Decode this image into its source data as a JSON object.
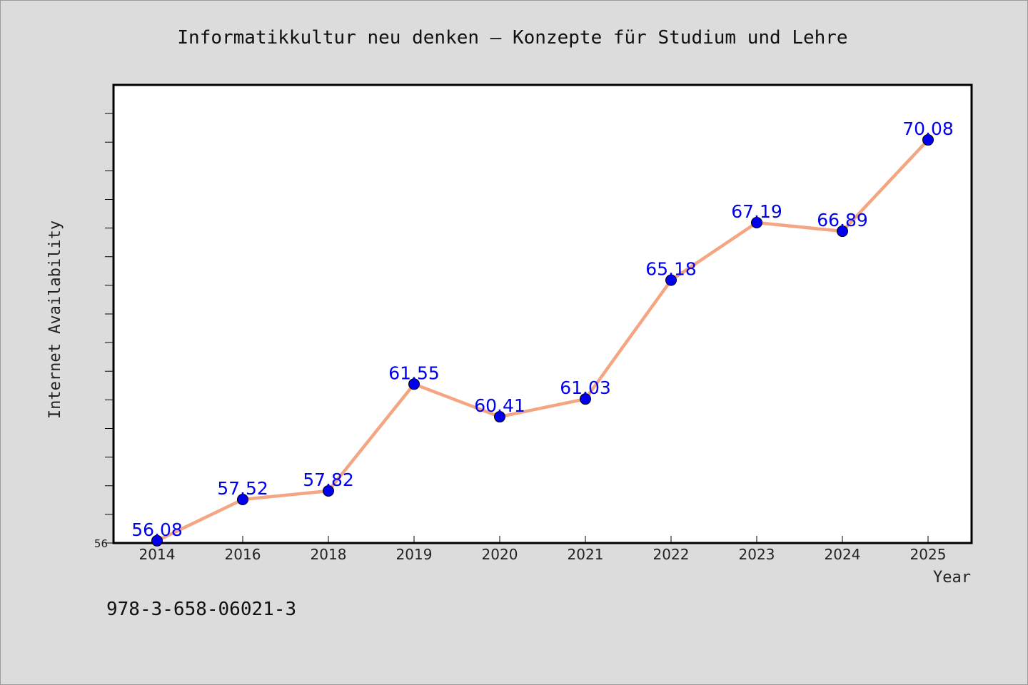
{
  "chart_data": {
    "type": "line",
    "title": "Informatikkultur neu denken – Konzepte für Studium und Lehre",
    "xlabel": "Year",
    "ylabel": "Internet Availability",
    "categories": [
      "2014",
      "2016",
      "2018",
      "2019",
      "2020",
      "2021",
      "2022",
      "2023",
      "2024",
      "2025"
    ],
    "series": [
      {
        "values": [
          56.08,
          57.52,
          57.82,
          61.55,
          60.41,
          61.03,
          65.18,
          67.19,
          66.89,
          70.08
        ],
        "labels": [
          "56.08",
          "57.52",
          "57.82",
          "61.55",
          "60.41",
          "61.03",
          "65.18",
          "67.19",
          "66.89",
          "70.08"
        ]
      }
    ],
    "y_tick_labels": [
      "56"
    ],
    "ylim": [
      56,
      72
    ],
    "y_minor_tick_step": 1,
    "line_color": "#f4a582",
    "marker_color": "#0000ee",
    "label_color": "#0000ee",
    "grid": false
  },
  "footer": {
    "isbn": "978-3-658-06021-3"
  }
}
